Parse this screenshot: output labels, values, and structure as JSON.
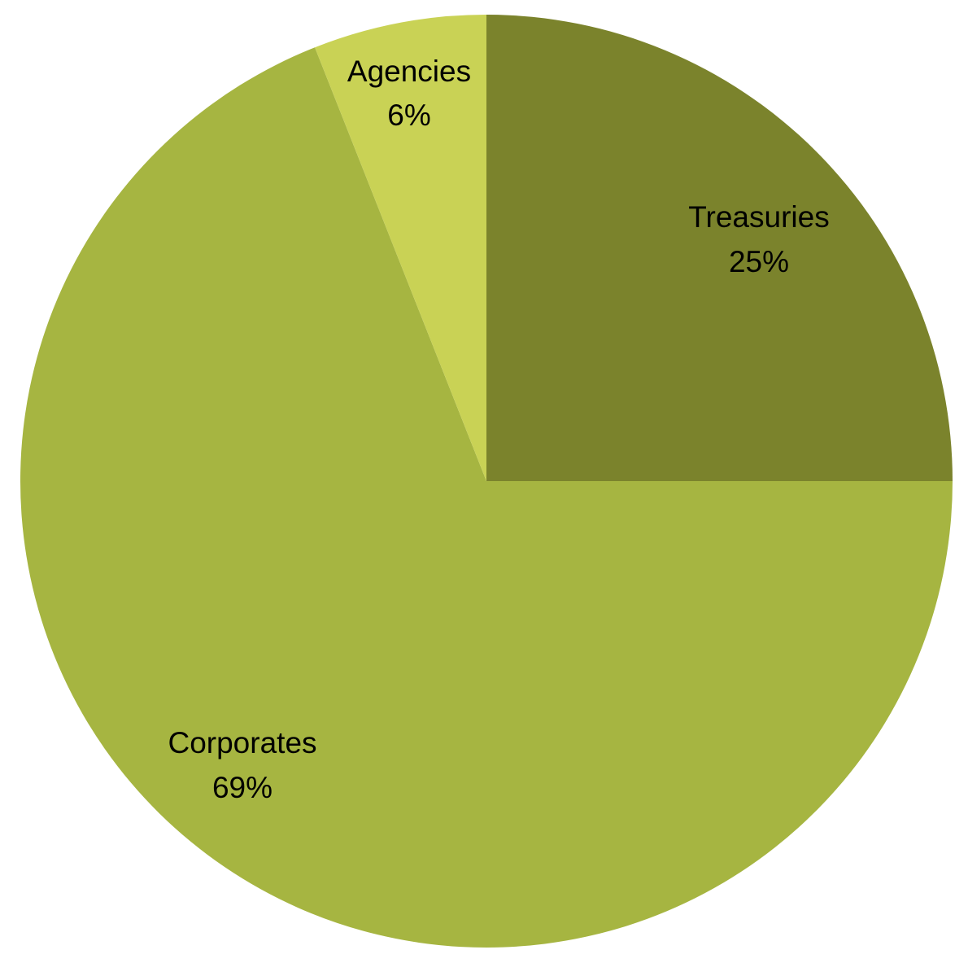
{
  "chart_data": {
    "type": "pie",
    "title": "",
    "slices": [
      {
        "label": "Treasuries",
        "value": 25,
        "value_label": "25%",
        "color": "#7b832c"
      },
      {
        "label": "Corporates",
        "value": 69,
        "value_label": "69%",
        "color": "#a6b541"
      },
      {
        "label": "Agencies",
        "value": 6,
        "value_label": "6%",
        "color": "#c9d255"
      }
    ],
    "start": "12 o'clock",
    "direction": "clockwise",
    "legend": "none",
    "labels": "inside slices"
  }
}
